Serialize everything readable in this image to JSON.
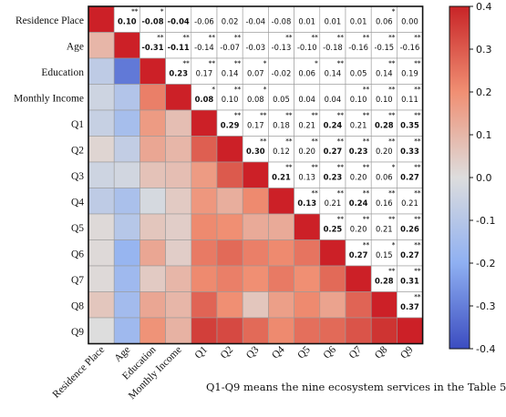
{
  "chart_data": {
    "type": "heatmap",
    "variables": [
      "Residence Place",
      "Age",
      "Education",
      "Monthly Income",
      "Q1",
      "Q2",
      "Q3",
      "Q4",
      "Q5",
      "Q6",
      "Q7",
      "Q8",
      "Q9"
    ],
    "upper_labels": [
      [
        "",
        "0.10",
        "-0.08",
        "-0.04",
        "-0.06",
        "0.02",
        "-0.04",
        "-0.08",
        "0.01",
        "0.01",
        "0.01",
        "0.06",
        "0.00"
      ],
      [
        "",
        "",
        "-0.31",
        "-0.11",
        "-0.14",
        "-0.07",
        "-0.03",
        "-0.13",
        "-0.10",
        "-0.18",
        "-0.16",
        "-0.15",
        "-0.16"
      ],
      [
        "",
        "",
        "",
        "0.23",
        "0.17",
        "0.14",
        "0.07",
        "-0.02",
        "0.06",
        "0.14",
        "0.05",
        "0.14",
        "0.19"
      ],
      [
        "",
        "",
        "",
        "",
        "0.08",
        "0.10",
        "0.08",
        "0.05",
        "0.04",
        "0.04",
        "0.10",
        "0.10",
        "0.11"
      ],
      [
        "",
        "",
        "",
        "",
        "",
        "0.29",
        "0.17",
        "0.18",
        "0.21",
        "0.24",
        "0.21",
        "0.28",
        "0.35"
      ],
      [
        "",
        "",
        "",
        "",
        "",
        "",
        "0.30",
        "0.12",
        "0.20",
        "0.27",
        "0.23",
        "0.20",
        "0.33"
      ],
      [
        "",
        "",
        "",
        "",
        "",
        "",
        "",
        "0.21",
        "0.13",
        "0.23",
        "0.20",
        "0.06",
        "0.27"
      ],
      [
        "",
        "",
        "",
        "",
        "",
        "",
        "",
        "",
        "0.13",
        "0.21",
        "0.24",
        "0.16",
        "0.21"
      ],
      [
        "",
        "",
        "",
        "",
        "",
        "",
        "",
        "",
        "",
        "0.25",
        "0.20",
        "0.21",
        "0.26"
      ],
      [
        "",
        "",
        "",
        "",
        "",
        "",
        "",
        "",
        "",
        "",
        "0.27",
        "0.15",
        "0.27"
      ],
      [
        "",
        "",
        "",
        "",
        "",
        "",
        "",
        "",
        "",
        "",
        "",
        "0.28",
        "0.31"
      ],
      [
        "",
        "",
        "",
        "",
        "",
        "",
        "",
        "",
        "",
        "",
        "",
        "",
        "0.37"
      ],
      [
        "",
        "",
        "",
        "",
        "",
        "",
        "",
        "",
        "",
        "",
        "",
        "",
        ""
      ]
    ],
    "upper_bold": [
      [
        0,
        1,
        1,
        1,
        0,
        0,
        0,
        0,
        0,
        0,
        0,
        0,
        0
      ],
      [
        0,
        0,
        1,
        1,
        0,
        0,
        0,
        0,
        0,
        0,
        0,
        0,
        0
      ],
      [
        0,
        0,
        0,
        1,
        0,
        0,
        0,
        0,
        0,
        0,
        0,
        0,
        0
      ],
      [
        0,
        0,
        0,
        0,
        1,
        0,
        0,
        0,
        0,
        0,
        0,
        0,
        0
      ],
      [
        0,
        0,
        0,
        0,
        0,
        1,
        0,
        0,
        0,
        1,
        0,
        1,
        1
      ],
      [
        0,
        0,
        0,
        0,
        0,
        0,
        1,
        0,
        0,
        1,
        1,
        0,
        1
      ],
      [
        0,
        0,
        0,
        0,
        0,
        0,
        0,
        1,
        0,
        1,
        0,
        0,
        1
      ],
      [
        0,
        0,
        0,
        0,
        0,
        0,
        0,
        0,
        1,
        0,
        1,
        0,
        0
      ],
      [
        0,
        0,
        0,
        0,
        0,
        0,
        0,
        0,
        0,
        1,
        0,
        0,
        1
      ],
      [
        0,
        0,
        0,
        0,
        0,
        0,
        0,
        0,
        0,
        0,
        1,
        0,
        1
      ],
      [
        0,
        0,
        0,
        0,
        0,
        0,
        0,
        0,
        0,
        0,
        0,
        1,
        1
      ],
      [
        0,
        0,
        0,
        0,
        0,
        0,
        0,
        0,
        0,
        0,
        0,
        0,
        1
      ],
      [
        0,
        0,
        0,
        0,
        0,
        0,
        0,
        0,
        0,
        0,
        0,
        0,
        0
      ]
    ],
    "upper_stars": [
      [
        "",
        "**",
        "*",
        "",
        "",
        "",
        "",
        "",
        "",
        "",
        "",
        "*",
        ""
      ],
      [
        "",
        "",
        "**",
        "**",
        "**",
        "**",
        "",
        "**",
        "**",
        "**",
        "**",
        "**",
        "**"
      ],
      [
        "",
        "",
        "",
        "**",
        "**",
        "**",
        "*",
        "",
        "*",
        "**",
        "",
        "**",
        "**"
      ],
      [
        "",
        "",
        "",
        "",
        "*",
        "**",
        "*",
        "",
        "",
        "",
        "**",
        "**",
        "**"
      ],
      [
        "",
        "",
        "",
        "",
        "",
        "**",
        "**",
        "**",
        "**",
        "**",
        "**",
        "**",
        "**"
      ],
      [
        "",
        "",
        "",
        "",
        "",
        "",
        "**",
        "**",
        "**",
        "**",
        "**",
        "**",
        "**"
      ],
      [
        "",
        "",
        "",
        "",
        "",
        "",
        "",
        "**",
        "**",
        "**",
        "**",
        "*",
        "**"
      ],
      [
        "",
        "",
        "",
        "",
        "",
        "",
        "",
        "",
        "**",
        "**",
        "**",
        "**",
        "**"
      ],
      [
        "",
        "",
        "",
        "",
        "",
        "",
        "",
        "",
        "",
        "**",
        "**",
        "**",
        "**"
      ],
      [
        "",
        "",
        "",
        "",
        "",
        "",
        "",
        "",
        "",
        "",
        "**",
        "*",
        "**"
      ],
      [
        "",
        "",
        "",
        "",
        "",
        "",
        "",
        "",
        "",
        "",
        "",
        "**",
        "**"
      ],
      [
        "",
        "",
        "",
        "",
        "",
        "",
        "",
        "",
        "",
        "",
        "",
        "",
        "**"
      ],
      [
        "",
        "",
        "",
        "",
        "",
        "",
        "",
        "",
        "",
        "",
        "",
        "",
        ""
      ]
    ],
    "colorbar": {
      "min": -0.4,
      "max": 0.4,
      "ticks": [
        "0.4",
        "0.3",
        "0.2",
        "0.1",
        "0.0",
        "-0.1",
        "-0.2",
        "-0.3",
        "-0.4"
      ]
    },
    "colors": {
      "negative": "#3b4cc0",
      "neutral": "#dddddd",
      "positive": "#c82427"
    }
  },
  "note": "Q1-Q9 means the nine ecosystem services in the Table 5"
}
